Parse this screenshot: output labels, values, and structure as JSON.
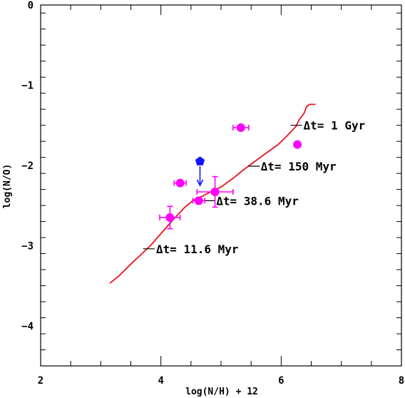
{
  "chart_data": {
    "type": "scatter",
    "title": "",
    "xlabel": "log(N/H) + 12",
    "ylabel": "log(N/O)",
    "xlim": [
      2,
      8
    ],
    "ylim": [
      -4.5,
      0
    ],
    "x_ticks": [
      2,
      4,
      6,
      8
    ],
    "x_tick_labels": [
      "2",
      "4",
      "6",
      "8"
    ],
    "y_ticks": [
      0,
      -1,
      -2,
      -3,
      -4
    ],
    "y_tick_labels": [
      "0",
      "−1",
      "−2",
      "−3",
      "−4"
    ],
    "grid": false,
    "legend": "none",
    "model_track": {
      "color": "#e8141c",
      "x": [
        3.15,
        3.3,
        3.5,
        3.7,
        3.85,
        4.0,
        4.2,
        4.4,
        4.55,
        4.7,
        4.85,
        5.0,
        5.2,
        5.4,
        5.6,
        5.8,
        5.95,
        6.1,
        6.25,
        6.3,
        6.38,
        6.42,
        6.47,
        6.52,
        6.57
      ],
      "y": [
        -3.47,
        -3.38,
        -3.23,
        -3.09,
        -2.98,
        -2.85,
        -2.68,
        -2.52,
        -2.43,
        -2.38,
        -2.32,
        -2.27,
        -2.16,
        -2.04,
        -1.93,
        -1.82,
        -1.74,
        -1.63,
        -1.51,
        -1.43,
        -1.35,
        -1.27,
        -1.24,
        -1.24,
        -1.24
      ]
    },
    "annotations": [
      {
        "text": "Δt= 11.6 Myr",
        "x": 3.8,
        "y": -3.04,
        "label_x": 3.92,
        "label_y": -3.04
      },
      {
        "text": "Δt= 38.6 Myr",
        "x": 4.8,
        "y": -2.44,
        "label_x": 4.92,
        "label_y": -2.44
      },
      {
        "text": "Δt= 150 Myr",
        "x": 5.55,
        "y": -2.01,
        "label_x": 5.66,
        "label_y": -2.01
      },
      {
        "text": "Δt= 1 Gyr",
        "x": 6.25,
        "y": -1.5,
        "label_x": 6.37,
        "label_y": -1.5
      }
    ],
    "points": [
      {
        "x": 5.33,
        "y": -1.53,
        "xerr": 0.13,
        "yerr": 0.03,
        "color": "#ff00ff",
        "marker": "circle"
      },
      {
        "x": 6.27,
        "y": -1.74,
        "xerr": 0.0,
        "yerr": 0.0,
        "color": "#ff00ff",
        "marker": "circle"
      },
      {
        "x": 4.32,
        "y": -2.22,
        "xerr": 0.1,
        "yerr": 0.03,
        "color": "#ff00ff",
        "marker": "circle"
      },
      {
        "x": 4.63,
        "y": -2.44,
        "xerr": 0.1,
        "yerr": 0.04,
        "color": "#ff00ff",
        "marker": "circle"
      },
      {
        "x": 4.9,
        "y": -2.33,
        "xerr": 0.3,
        "yerr": 0.19,
        "color": "#ff00ff",
        "marker": "circle"
      },
      {
        "x": 4.15,
        "y": -2.65,
        "xerr": 0.17,
        "yerr": 0.14,
        "color": "#ff00ff",
        "marker": "circle"
      }
    ],
    "upper_limits": [
      {
        "x": 4.65,
        "y": -1.95,
        "arrow_to": -2.25,
        "color": "#1414ff",
        "marker": "pentagon"
      }
    ]
  }
}
